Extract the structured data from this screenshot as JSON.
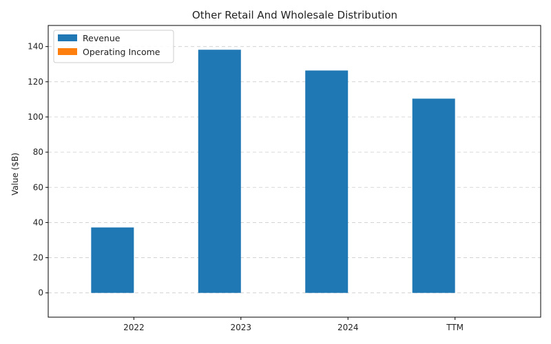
{
  "chart_data": {
    "type": "bar",
    "title": "Other Retail And Wholesale Distribution",
    "xlabel": "",
    "ylabel": "Value ($B)",
    "categories": [
      "2022",
      "2023",
      "2024",
      "TTM"
    ],
    "series": [
      {
        "name": "Revenue",
        "color": "#1f77b4",
        "values": [
          37.2,
          138.2,
          126.4,
          110.4
        ]
      },
      {
        "name": "Operating Income",
        "color": "#ff7f0e",
        "values": [
          0,
          0,
          0,
          0
        ]
      }
    ],
    "ylim": [
      -13.8,
      152
    ],
    "yticks": [
      0,
      20,
      40,
      60,
      80,
      100,
      120,
      140
    ],
    "grid": "y-dashed",
    "legend_position": "top-left"
  }
}
